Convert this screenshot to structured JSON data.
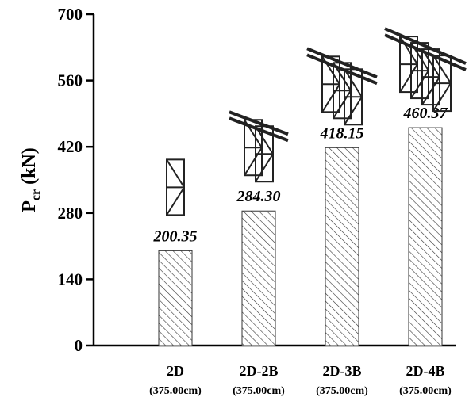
{
  "chart_data": {
    "type": "bar",
    "y_label": {
      "symbol": "P",
      "subscript": "cr",
      "unit": "(kN)"
    },
    "categories": [
      "2D",
      "2D-2B",
      "2D-3B",
      "2D-4B"
    ],
    "category_sublabels": [
      "(375.00cm)",
      "(375.00cm)",
      "(375.00cm)",
      "(375.00cm)"
    ],
    "values": [
      200.35,
      284.3,
      418.15,
      460.37
    ],
    "value_labels": [
      "200.35",
      "284.30",
      "418.15",
      "460.37"
    ],
    "color": "#333333",
    "ylim": [
      0,
      700
    ],
    "yticks": [
      0,
      140,
      280,
      420,
      560,
      700
    ]
  }
}
